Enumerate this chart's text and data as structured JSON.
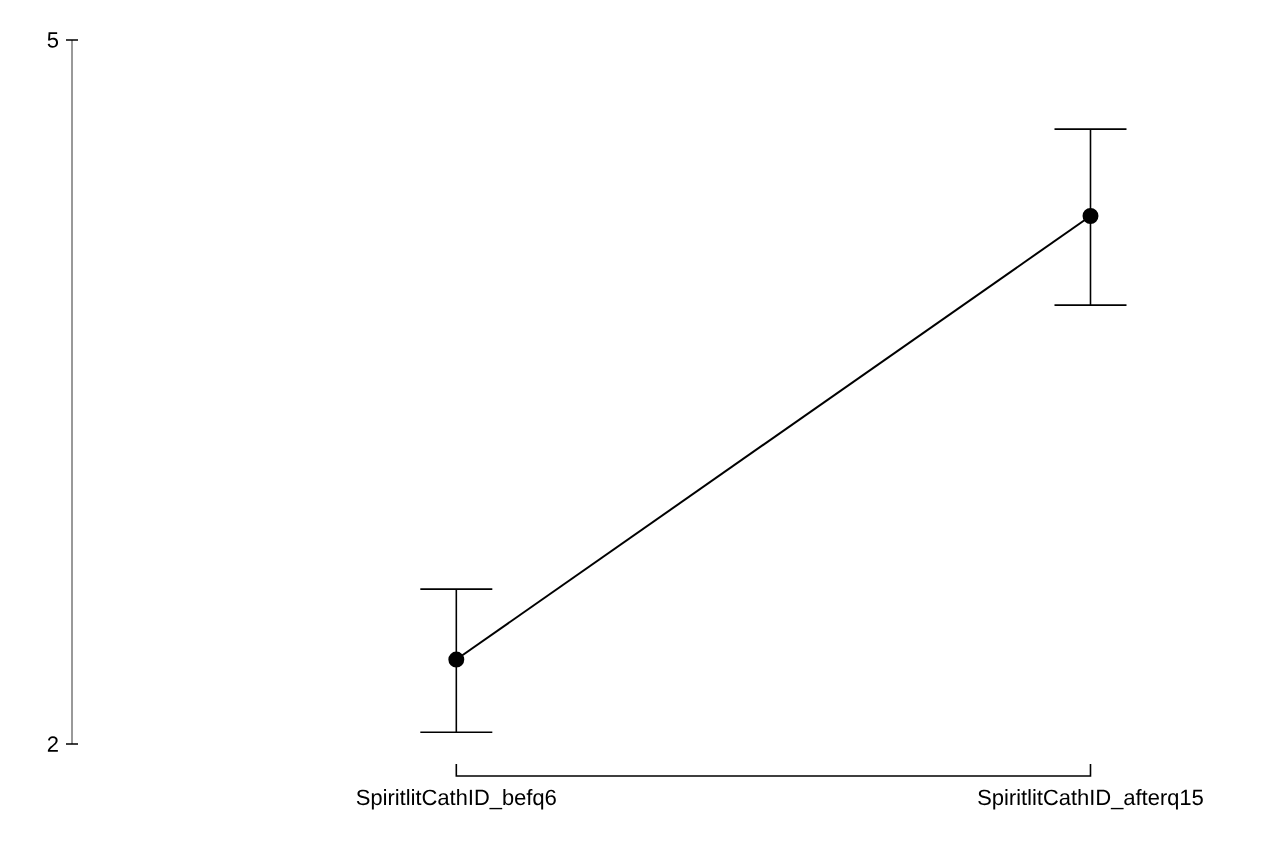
{
  "chart_data": {
    "type": "line",
    "categories": [
      "SpiritlitCathID_befq6",
      "SpiritlitCathID_afterq15"
    ],
    "values": [
      2.36,
      4.25
    ],
    "errors": [
      [
        2.05,
        2.66
      ],
      [
        3.87,
        4.62
      ]
    ],
    "color": "#000000",
    "marker": "circle",
    "line_style": "solid",
    "ylim": [
      2,
      5
    ],
    "yticks": [
      2,
      5
    ],
    "grid": false
  }
}
